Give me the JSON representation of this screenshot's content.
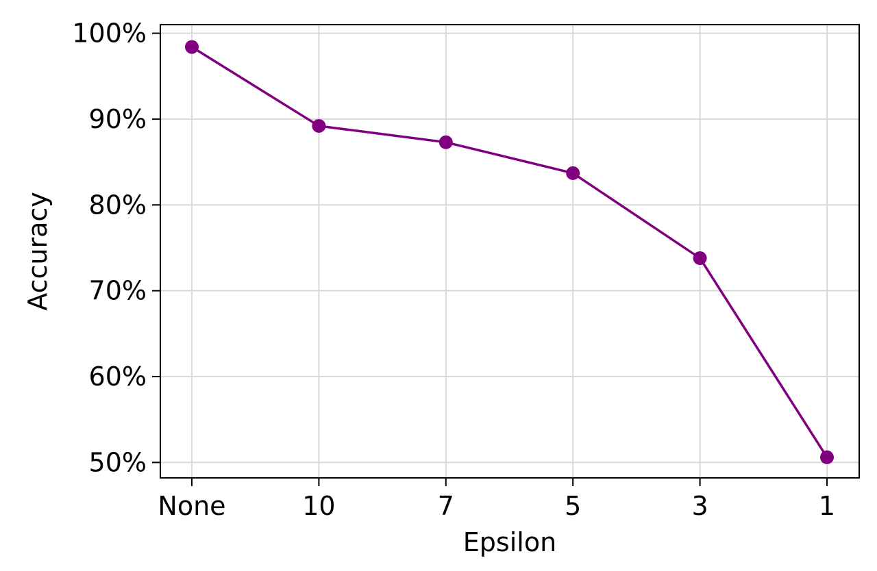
{
  "chart_data": {
    "type": "line",
    "title": "",
    "xlabel": "Epsilon",
    "ylabel": "Accuracy",
    "categories": [
      "None",
      "10",
      "7",
      "5",
      "3",
      "1"
    ],
    "series": [
      {
        "values": [
          98.4,
          89.2,
          87.3,
          83.7,
          73.8,
          50.6
        ]
      }
    ],
    "y_ticks": [
      50,
      60,
      70,
      80,
      90,
      100
    ],
    "y_tick_labels": [
      "50%",
      "60%",
      "70%",
      "80%",
      "90%",
      "100%"
    ],
    "ylim": [
      48.2,
      101.0
    ],
    "grid": true,
    "legend": "none",
    "colors": {
      "series": "#800080",
      "grid": "#d9d9d9",
      "axes": "#000000"
    }
  }
}
